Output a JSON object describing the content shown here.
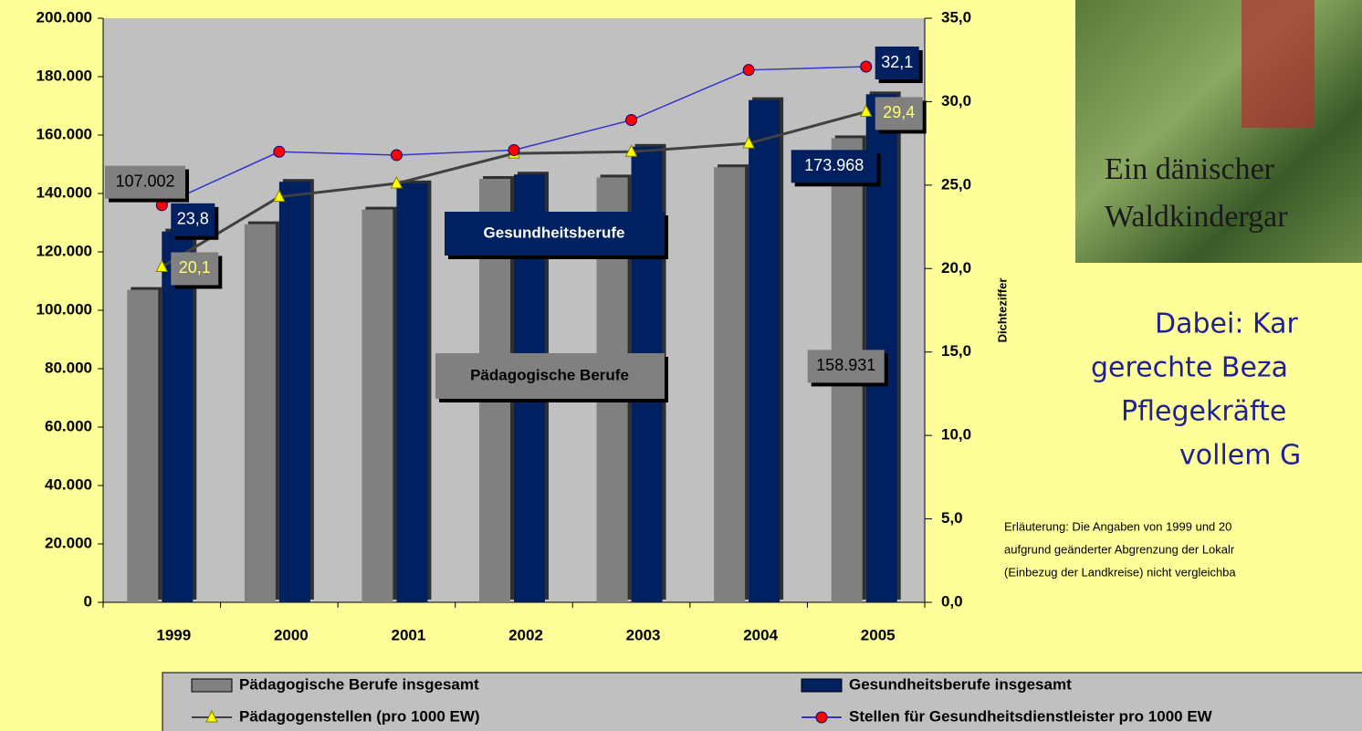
{
  "chart_data": {
    "type": "bar-line",
    "categories": [
      "1999",
      "2000",
      "2001",
      "2002",
      "2003",
      "2004",
      "2005"
    ],
    "series": [
      {
        "name": "Pädagogische Berufe insgesamt",
        "type": "bar",
        "color": "#808080",
        "values": [
          107002,
          129500,
          134500,
          145000,
          145500,
          149000,
          158931
        ],
        "value_labels": [
          "107.002",
          null,
          null,
          null,
          null,
          null,
          "158.931"
        ]
      },
      {
        "name": "Gesundheitsberufe insgesamt",
        "type": "bar",
        "color": "#002060",
        "values": [
          127000,
          144000,
          143500,
          146500,
          156000,
          172000,
          173968
        ],
        "value_labels": [
          null,
          null,
          null,
          null,
          null,
          null,
          "173.968"
        ]
      },
      {
        "name": "Pädagogenstellen (pro 1000 EW)",
        "type": "line",
        "axis": "y2",
        "color": "#404040",
        "marker": "triangle",
        "marker_color": "#ffff00",
        "values": [
          20.1,
          24.3,
          25.1,
          26.9,
          27.0,
          27.5,
          29.4
        ],
        "value_labels": [
          "20,1",
          null,
          null,
          null,
          null,
          null,
          "29,4"
        ]
      },
      {
        "name": "Stellen für Gesundheitsdienstleister pro 1000 EW",
        "type": "line",
        "axis": "y2",
        "color": "#3333cc",
        "marker": "circle",
        "marker_color": "#ff0000",
        "values": [
          23.8,
          27.0,
          26.8,
          27.1,
          28.9,
          31.9,
          32.1
        ],
        "value_labels": [
          "23,8",
          null,
          null,
          null,
          null,
          null,
          "32,1"
        ]
      }
    ],
    "ylim": [
      0,
      200000
    ],
    "yticks": [
      0,
      {
        "value": 20000,
        "label": "20.000"
      },
      {
        "value": 40000,
        "label": "40.000"
      },
      {
        "value": 60000,
        "label": "60.000"
      },
      {
        "value": 80000,
        "label": "80.000"
      },
      {
        "value": 100000,
        "label": "100.000"
      },
      {
        "value": 120000,
        "label": "120.000"
      },
      {
        "value": 140000,
        "label": "140.000"
      },
      {
        "value": 160000,
        "label": "160.000"
      },
      {
        "value": 180000,
        "label": "180.000"
      },
      {
        "value": 200000,
        "label": "200.000"
      }
    ],
    "y2lim": [
      0,
      35
    ],
    "y2ticks": [
      {
        "value": 0,
        "label": "0,0"
      },
      {
        "value": 5,
        "label": "5,0"
      },
      {
        "value": 10,
        "label": "10,0"
      },
      {
        "value": 15,
        "label": "15,0"
      },
      {
        "value": 20,
        "label": "20,0"
      },
      {
        "value": 25,
        "label": "25,0"
      },
      {
        "value": 30,
        "label": "30,0"
      },
      {
        "value": 35,
        "label": "35,0"
      }
    ],
    "y2label": "Dichteziffer",
    "annotations": [
      "Gesundheitsberufe",
      "Pädagogische Berufe"
    ],
    "legend": "bottom"
  },
  "photo_caption": [
    "Ein dänischer",
    "Waldkindergar"
  ],
  "slide_text": [
    "Dabei: Kar",
    "gerechte Beza",
    "Pflegekräfte",
    "vollem G"
  ],
  "note": [
    "Erläuterung: Die Angaben von 1999 und 20",
    "aufgrund geänderter Abgrenzung der Lokalr",
    "(Einbezug der Landkreise) nicht vergleichba"
  ]
}
